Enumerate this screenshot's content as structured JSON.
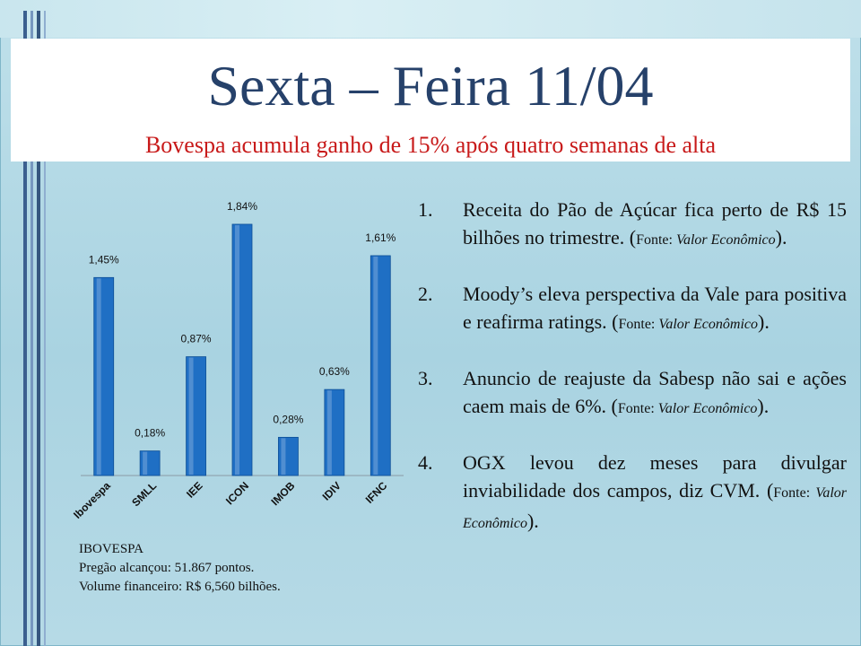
{
  "title": "Sexta – Feira 11/04",
  "subtitle": "Bovespa acumula ganho de 15% após quatro semanas de alta",
  "chart_data": {
    "type": "bar",
    "categories": [
      "Ibovespa",
      "SMLL",
      "IEE",
      "ICON",
      "IMOB",
      "IDIV",
      "IFNC"
    ],
    "values": [
      1.45,
      0.18,
      0.87,
      1.84,
      0.28,
      0.63,
      1.61
    ],
    "data_labels": [
      "1,45%",
      "0,18%",
      "0,87%",
      "1,84%",
      "0,28%",
      "0,63%",
      "1,61%"
    ],
    "ylim": [
      0,
      2
    ],
    "grid": false,
    "bar_color": "#1f6fc4"
  },
  "info": {
    "heading": "IBOVESPA",
    "line1": "Pregão alcançou:  51.867 pontos.",
    "line2": "Volume financeiro:  R$ 6,560 bilhões."
  },
  "news": [
    {
      "num": "1.",
      "text": "Receita do Pão de Açúcar fica perto de R$ 15 bilhões no trimestre. (",
      "source_label": "Fonte: ",
      "source": "Valor Econômico",
      "end": ")."
    },
    {
      "num": "2.",
      "text": "Moody’s eleva perspectiva da Vale para positiva e reafirma ratings.  (",
      "source_label": "Fonte: ",
      "source": "Valor Econômico",
      "end": ")."
    },
    {
      "num": "3.",
      "text": "Anuncio de reajuste da Sabesp não sai e ações caem mais de 6%. (",
      "source_label": "Fonte: ",
      "source": "Valor Econômico",
      "end": ")."
    },
    {
      "num": "4.",
      "text": "OGX levou dez meses para divulgar inviabilidade dos campos, diz CVM. (",
      "source_label": "Fonte: ",
      "source": "Valor Econômico",
      "end": ")."
    }
  ]
}
